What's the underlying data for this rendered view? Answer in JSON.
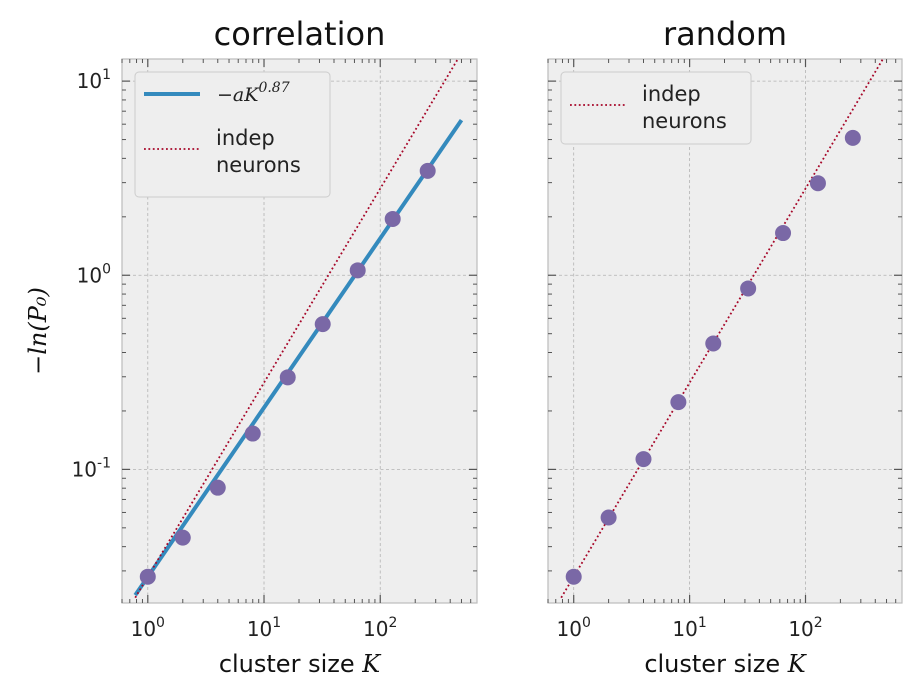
{
  "chart_data": [
    {
      "type": "scatter",
      "title": "correlation",
      "xlabel": "cluster size",
      "xlabel_symbol": "K",
      "ylabel": "−ln(P₀)",
      "xscale": "log",
      "yscale": "log",
      "xlim": [
        0.6,
        680
      ],
      "ylim": [
        0.0205,
        13
      ],
      "grid": true,
      "x_ticks": [
        {
          "value": 1,
          "base": "10",
          "exp": "0"
        },
        {
          "value": 10,
          "base": "10",
          "exp": "1"
        },
        {
          "value": 100,
          "base": "10",
          "exp": "2"
        }
      ],
      "y_ticks": [
        {
          "value": 0.1,
          "base": "10",
          "exp": "-1"
        },
        {
          "value": 1,
          "base": "10",
          "exp": "0"
        },
        {
          "value": 10,
          "base": "10",
          "exp": "1"
        }
      ],
      "legend_position": "top-left",
      "series": [
        {
          "kind": "points",
          "color": "#7a68a6",
          "x": [
            1,
            2,
            4,
            8,
            16,
            32,
            64,
            128,
            256
          ],
          "y": [
            0.028,
            0.0445,
            0.0805,
            0.153,
            0.298,
            0.56,
            1.06,
            1.95,
            3.45
          ]
        },
        {
          "kind": "fit-line",
          "name_prefix": "−a",
          "name_symbol": "K",
          "name_exp": "0.87",
          "color": "#348abd",
          "style": "solid",
          "x": [
            0.78,
            500
          ],
          "y": [
            0.0225,
            6.3
          ]
        },
        {
          "kind": "reference-line",
          "name": "indep neurons",
          "name_lines": [
            "indep",
            "neurons"
          ],
          "color": "#a60628",
          "style": "dotted",
          "x": [
            0.78,
            512
          ],
          "y": [
            0.02184,
            14.3
          ]
        }
      ]
    },
    {
      "type": "scatter",
      "title": "random",
      "xlabel": "cluster size",
      "xlabel_symbol": "K",
      "xscale": "log",
      "yscale": "log",
      "xlim": [
        0.6,
        680
      ],
      "ylim": [
        0.0205,
        13
      ],
      "grid": true,
      "x_ticks": [
        {
          "value": 1,
          "base": "10",
          "exp": "0"
        },
        {
          "value": 10,
          "base": "10",
          "exp": "1"
        },
        {
          "value": 100,
          "base": "10",
          "exp": "2"
        }
      ],
      "legend_position": "top-left",
      "series": [
        {
          "kind": "points",
          "color": "#7a68a6",
          "x": [
            1,
            2,
            4,
            8,
            16,
            32,
            64,
            128,
            256
          ],
          "y": [
            0.028,
            0.0565,
            0.113,
            0.222,
            0.445,
            0.855,
            1.65,
            2.98,
            5.1
          ]
        },
        {
          "kind": "reference-line",
          "name": "indep neurons",
          "name_lines": [
            "indep",
            "neurons"
          ],
          "color": "#a60628",
          "style": "dotted",
          "x": [
            0.78,
            512
          ],
          "y": [
            0.02184,
            14.3
          ]
        }
      ]
    }
  ]
}
